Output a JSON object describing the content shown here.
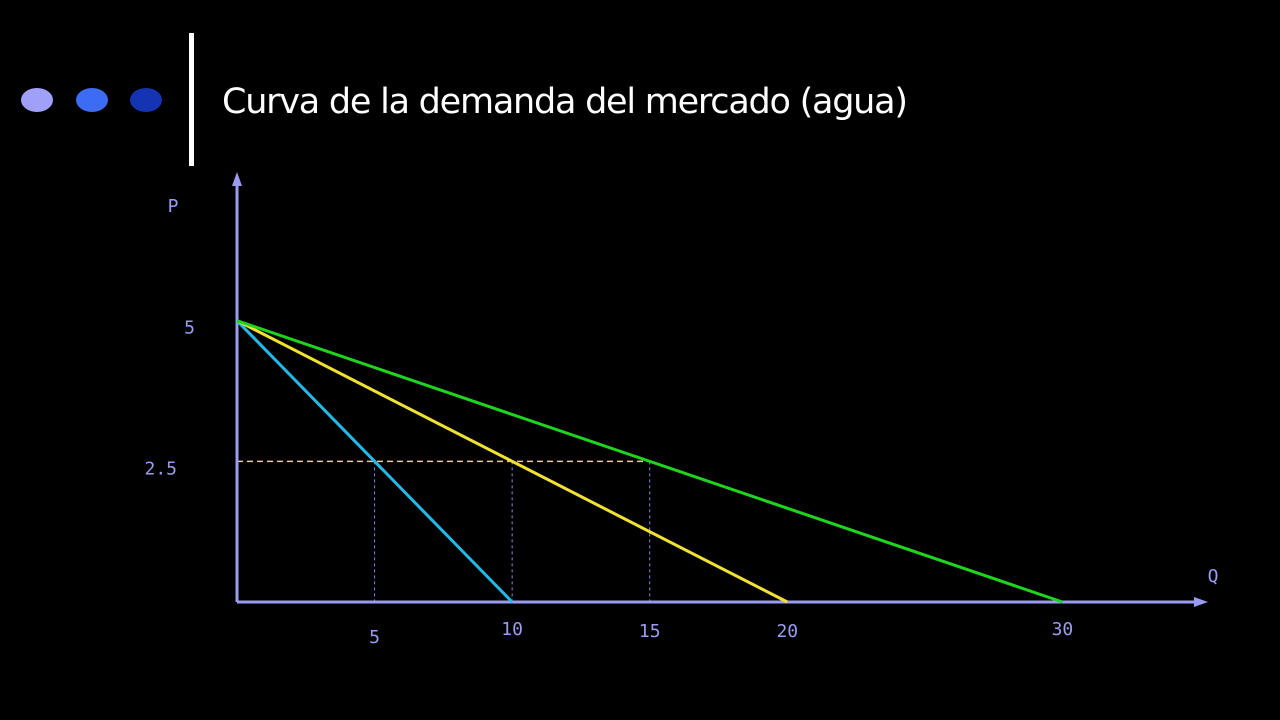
{
  "chart_data": {
    "type": "line",
    "title": "Curva de la demanda del mercado (agua)",
    "x_label": "Q",
    "y_label": "P",
    "series": [
      {
        "color": "#24b8e6",
        "x": [
          0,
          10
        ],
        "values": [
          5,
          0
        ]
      },
      {
        "color": "#f0e230",
        "x": [
          0,
          20
        ],
        "values": [
          5,
          0
        ]
      },
      {
        "color": "#1fd41f",
        "x": [
          0,
          30
        ],
        "values": [
          5,
          0
        ]
      }
    ],
    "xlim": [
      0,
      35
    ],
    "ylim": [
      0,
      7.5
    ],
    "xticks": [
      5,
      10,
      15,
      20,
      30
    ],
    "yticks": [
      2.5,
      5
    ],
    "dashed_guides": true
  }
}
